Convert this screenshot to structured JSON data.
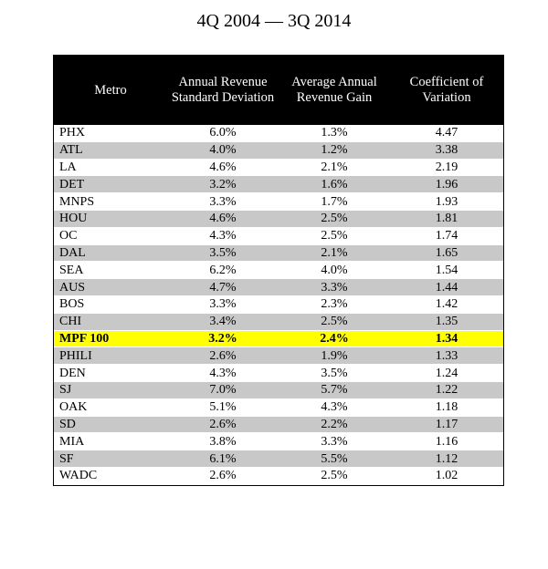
{
  "title": "4Q 2004 — 3Q 2014",
  "table": {
    "headers": [
      "Metro",
      "Annual Revenue Standard Deviation",
      "Average Annual Revenue Gain",
      "Coefficient of Variation"
    ],
    "rows": [
      {
        "metro": "PHX",
        "std": "6.0%",
        "gain": "1.3%",
        "cov": "4.47",
        "style": "plain"
      },
      {
        "metro": "ATL",
        "std": "4.0%",
        "gain": "1.2%",
        "cov": "3.38",
        "style": "shade"
      },
      {
        "metro": "LA",
        "std": "4.6%",
        "gain": "2.1%",
        "cov": "2.19",
        "style": "plain"
      },
      {
        "metro": "DET",
        "std": "3.2%",
        "gain": "1.6%",
        "cov": "1.96",
        "style": "shade"
      },
      {
        "metro": "MNPS",
        "std": "3.3%",
        "gain": "1.7%",
        "cov": "1.93",
        "style": "plain"
      },
      {
        "metro": "HOU",
        "std": "4.6%",
        "gain": "2.5%",
        "cov": "1.81",
        "style": "shade"
      },
      {
        "metro": "OC",
        "std": "4.3%",
        "gain": "2.5%",
        "cov": "1.74",
        "style": "plain"
      },
      {
        "metro": "DAL",
        "std": "3.5%",
        "gain": "2.1%",
        "cov": "1.65",
        "style": "shade"
      },
      {
        "metro": "SEA",
        "std": "6.2%",
        "gain": "4.0%",
        "cov": "1.54",
        "style": "plain"
      },
      {
        "metro": "AUS",
        "std": "4.7%",
        "gain": "3.3%",
        "cov": "1.44",
        "style": "shade"
      },
      {
        "metro": "BOS",
        "std": "3.3%",
        "gain": "2.3%",
        "cov": "1.42",
        "style": "plain"
      },
      {
        "metro": "CHI",
        "std": "3.4%",
        "gain": "2.5%",
        "cov": "1.35",
        "style": "shade"
      },
      {
        "metro": "MPF 100",
        "std": "3.2%",
        "gain": "2.4%",
        "cov": "1.34",
        "style": "highlight"
      },
      {
        "metro": "PHILI",
        "std": "2.6%",
        "gain": "1.9%",
        "cov": "1.33",
        "style": "shade"
      },
      {
        "metro": "DEN",
        "std": "4.3%",
        "gain": "3.5%",
        "cov": "1.24",
        "style": "plain"
      },
      {
        "metro": "SJ",
        "std": "7.0%",
        "gain": "5.7%",
        "cov": "1.22",
        "style": "shade"
      },
      {
        "metro": "OAK",
        "std": "5.1%",
        "gain": "4.3%",
        "cov": "1.18",
        "style": "plain"
      },
      {
        "metro": "SD",
        "std": "2.6%",
        "gain": "2.2%",
        "cov": "1.17",
        "style": "shade"
      },
      {
        "metro": "MIA",
        "std": "3.8%",
        "gain": "3.3%",
        "cov": "1.16",
        "style": "plain"
      },
      {
        "metro": "SF",
        "std": "6.1%",
        "gain": "5.5%",
        "cov": "1.12",
        "style": "shade"
      },
      {
        "metro": "WADC",
        "std": "2.6%",
        "gain": "2.5%",
        "cov": "1.02",
        "style": "plain"
      }
    ]
  },
  "colors": {
    "header_bg": "#000000",
    "shade_row": "#c8c8c8",
    "highlight_row": "#ffff00"
  }
}
